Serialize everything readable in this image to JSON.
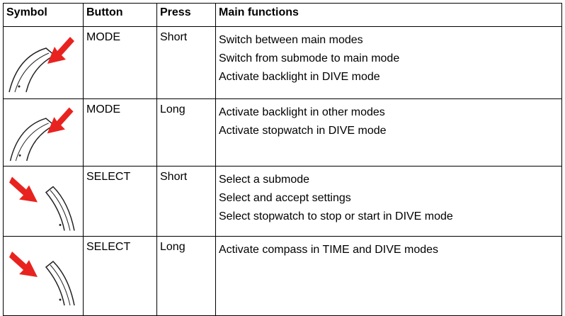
{
  "table": {
    "header": [
      "Symbol",
      "Button",
      "Press",
      "Main functions"
    ],
    "rows": [
      {
        "button": "MODE",
        "press": "Short",
        "functions": [
          "Switch between main modes",
          "Switch from submode to main mode",
          "Activate backlight in DIVE mode"
        ]
      },
      {
        "button": "MODE",
        "press": "Long",
        "functions": [
          "Activate backlight in other modes",
          "Activate stopwatch in DIVE mode"
        ]
      },
      {
        "button": "SELECT",
        "press": "Short",
        "functions": [
          "Select a submode",
          "Select and accept settings",
          "Select stopwatch to stop or start in DIVE mode"
        ]
      },
      {
        "button": "SELECT",
        "press": "Long",
        "functions": [
          "Activate compass in TIME and DIVE modes"
        ]
      }
    ]
  }
}
